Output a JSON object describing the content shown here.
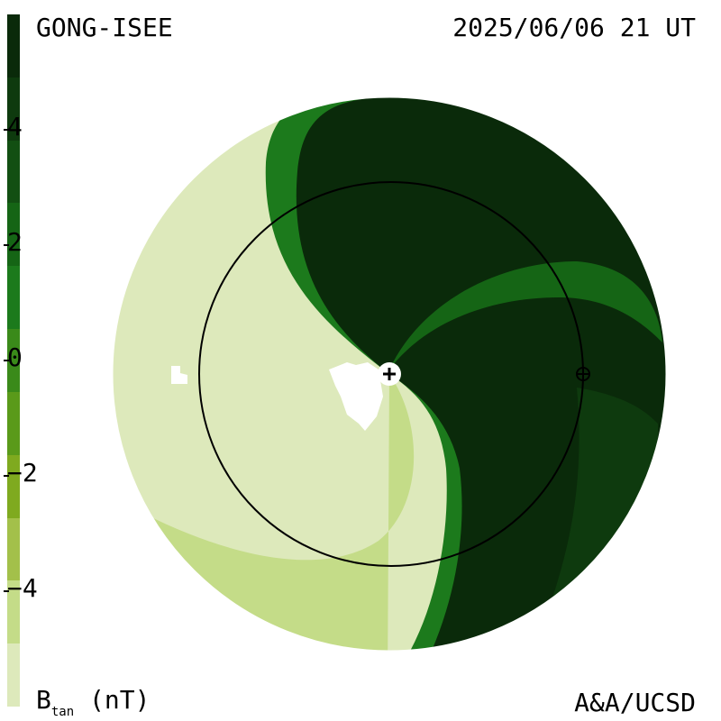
{
  "header": {
    "source_label": "GONG-ISEE",
    "datetime_label": "2025/06/06 21 UT"
  },
  "footer": {
    "credit_label": "A&A/UCSD"
  },
  "colorbar": {
    "unit_main": "B",
    "unit_sub": "tan",
    "unit_rest": " (nT)",
    "ticks": [
      "4",
      "2",
      "0",
      "−2",
      "−4"
    ],
    "tick_values": [
      4,
      2,
      0,
      -2,
      -4
    ],
    "range": [
      -6,
      6
    ],
    "colors_top_to_bottom": [
      "#0a2a0a",
      "#0e3a0e",
      "#124f12",
      "#156515",
      "#1c7a1c",
      "#3a8a1a",
      "#5a9a1a",
      "#7faa1f",
      "#a3c04a",
      "#c4dc88",
      "#dde9bb"
    ]
  },
  "map": {
    "colors": {
      "positive_strong": "#0a2a0a",
      "positive_mid": "#124f12",
      "positive_light": "#1c7a1c",
      "negative_strong": "#c4dc88",
      "negative_light": "#dde9bb",
      "gap": "#ffffff"
    },
    "center_marker": "sun-plus-marker",
    "earth_marker": "earth-crosshair-marker"
  }
}
